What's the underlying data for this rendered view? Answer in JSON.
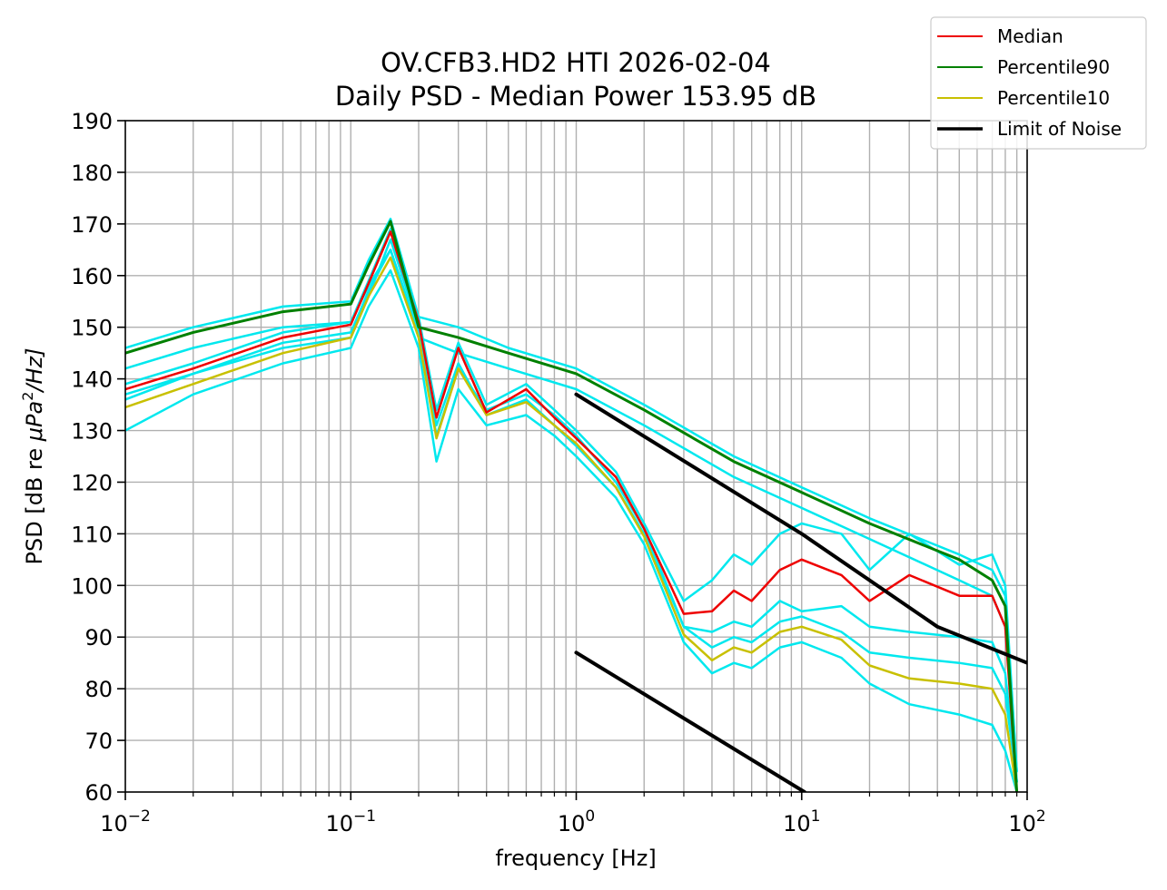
{
  "chart_data": {
    "type": "line",
    "title": [
      "OV.CFB3.HD2 HTI 2026-02-04",
      "Daily PSD - Median Power 153.95 dB"
    ],
    "xlabel": "frequency [Hz]",
    "ylabel_prefix": "PSD [dB re ",
    "ylabel_unit": "μPa",
    "ylabel_exp": "2",
    "ylabel_suffix": "/Hz]",
    "xscale": "log",
    "xlim": [
      0.01,
      100
    ],
    "ylim": [
      60,
      190
    ],
    "grid": true,
    "legend_position": "outside-top-right",
    "x_ticks": [
      {
        "value": 0.01,
        "base": "10",
        "exp": "−2"
      },
      {
        "value": 0.1,
        "base": "10",
        "exp": "−1"
      },
      {
        "value": 1,
        "base": "10",
        "exp": "0"
      },
      {
        "value": 10,
        "base": "10",
        "exp": "1"
      },
      {
        "value": 100,
        "base": "10",
        "exp": "2"
      }
    ],
    "y_ticks": [
      60,
      70,
      80,
      90,
      100,
      110,
      120,
      130,
      140,
      150,
      160,
      170,
      180,
      190
    ],
    "legend": [
      {
        "label": "Median",
        "color": "#ee0000",
        "width": 2
      },
      {
        "label": "Percentile90",
        "color": "#008000",
        "width": 2
      },
      {
        "label": "Percentile10",
        "color": "#c8c000",
        "width": 2
      },
      {
        "label": "Limit of Noise",
        "color": "#000000",
        "width": 3.5
      }
    ],
    "series": [
      {
        "name": "Median lower envelope",
        "color": "#00e8ee",
        "width": 2.5,
        "x": [
          0.01,
          0.02,
          0.05,
          0.1,
          0.12,
          0.15,
          0.2,
          0.24,
          0.3,
          0.4,
          0.6,
          0.8,
          1,
          1.5,
          2,
          3,
          4,
          5,
          6,
          8,
          10,
          15,
          20,
          30,
          50,
          70,
          80,
          90
        ],
        "y": [
          137,
          141,
          146,
          148,
          156,
          167,
          150,
          131,
          143,
          133,
          136,
          131,
          127,
          119,
          110,
          92,
          91,
          93,
          92,
          97,
          95,
          96,
          92,
          91,
          90,
          89,
          83,
          62
        ]
      },
      {
        "name": "Median upper envelope",
        "color": "#00e8ee",
        "width": 2.5,
        "x": [
          0.01,
          0.02,
          0.05,
          0.1,
          0.12,
          0.15,
          0.2,
          0.24,
          0.3,
          0.4,
          0.6,
          0.8,
          1,
          1.5,
          2,
          3,
          4,
          5,
          6,
          8,
          10,
          15,
          20,
          30,
          50,
          70,
          80,
          90
        ],
        "y": [
          139,
          143,
          149,
          151,
          159,
          169,
          152,
          134,
          147,
          135,
          139,
          134,
          130,
          122,
          112,
          97,
          101,
          106,
          104,
          110,
          112,
          110,
          103,
          110,
          104,
          106,
          100,
          64
        ]
      },
      {
        "name": "Percentile10 lower envelope",
        "color": "#00e8ee",
        "width": 2.5,
        "x": [
          0.01,
          0.02,
          0.05,
          0.1,
          0.12,
          0.15,
          0.2,
          0.24,
          0.3,
          0.4,
          0.6,
          0.8,
          1,
          1.5,
          2,
          3,
          4,
          5,
          6,
          8,
          10,
          15,
          20,
          30,
          50,
          70,
          80,
          90
        ],
        "y": [
          130,
          137,
          143,
          146,
          154,
          161,
          146,
          124,
          138,
          131,
          133,
          129,
          125,
          117,
          108,
          89,
          83,
          85,
          84,
          88,
          89,
          86,
          81,
          77,
          75,
          73,
          68,
          60
        ]
      },
      {
        "name": "Percentile10 upper envelope",
        "color": "#00e8ee",
        "width": 2.5,
        "x": [
          0.01,
          0.02,
          0.05,
          0.1,
          0.12,
          0.15,
          0.2,
          0.24,
          0.3,
          0.4,
          0.6,
          0.8,
          1,
          1.5,
          2,
          3,
          4,
          5,
          6,
          8,
          10,
          15,
          20,
          30,
          50,
          70,
          80,
          90
        ],
        "y": [
          136,
          141,
          147,
          149,
          157,
          165,
          149,
          129,
          142,
          134,
          137,
          133,
          129,
          120,
          111,
          92,
          88,
          90,
          89,
          93,
          94,
          91,
          87,
          86,
          85,
          84,
          79,
          62
        ]
      },
      {
        "name": "Percentile90 lower envelope",
        "color": "#00e8ee",
        "width": 2.5,
        "x": [
          0.01,
          0.02,
          0.05,
          0.1,
          0.12,
          0.15,
          0.2,
          0.3,
          0.5,
          1,
          2,
          5,
          10,
          20,
          50,
          70,
          80,
          90
        ],
        "y": [
          142,
          146,
          150,
          151,
          158,
          165,
          148,
          145,
          142,
          138,
          131,
          121,
          115,
          109,
          101,
          98,
          92,
          62
        ]
      },
      {
        "name": "Percentile90 upper envelope",
        "color": "#00e8ee",
        "width": 2.5,
        "x": [
          0.01,
          0.02,
          0.05,
          0.1,
          0.12,
          0.15,
          0.2,
          0.3,
          0.5,
          1,
          2,
          5,
          10,
          20,
          50,
          70,
          80,
          90
        ],
        "y": [
          146,
          150,
          154,
          155,
          163,
          171,
          152,
          150,
          146,
          142,
          135,
          125,
          119,
          113,
          106,
          103,
          98,
          64
        ]
      },
      {
        "name": "Percentile10",
        "color": "#c8c000",
        "width": 2.5,
        "x": [
          0.01,
          0.02,
          0.05,
          0.1,
          0.12,
          0.15,
          0.2,
          0.24,
          0.3,
          0.4,
          0.6,
          0.8,
          1,
          1.5,
          2,
          3,
          4,
          5,
          6,
          8,
          10,
          15,
          20,
          30,
          50,
          70,
          80,
          90
        ],
        "y": [
          134.5,
          139,
          145,
          148,
          156,
          163.5,
          148,
          128.5,
          142,
          133,
          135.5,
          131,
          127.5,
          119,
          109.5,
          90.5,
          85.5,
          88,
          87,
          91,
          92,
          89.5,
          84.5,
          82,
          81,
          80,
          75,
          60
        ]
      },
      {
        "name": "Median",
        "color": "#ee0000",
        "width": 2.5,
        "x": [
          0.01,
          0.02,
          0.05,
          0.1,
          0.12,
          0.15,
          0.2,
          0.24,
          0.3,
          0.4,
          0.6,
          0.8,
          1,
          1.5,
          2,
          3,
          4,
          5,
          6,
          8,
          10,
          15,
          20,
          30,
          50,
          70,
          80,
          90
        ],
        "y": [
          138,
          142,
          148,
          150.5,
          158.5,
          168.5,
          151,
          132.5,
          146,
          133.5,
          138,
          132.5,
          128.5,
          121,
          111,
          94.5,
          95,
          99,
          97,
          103,
          105,
          102,
          97,
          102,
          98,
          98,
          92,
          60
        ]
      },
      {
        "name": "Percentile90",
        "color": "#008000",
        "width": 3,
        "x": [
          0.01,
          0.02,
          0.05,
          0.1,
          0.12,
          0.15,
          0.2,
          0.3,
          0.5,
          1,
          2,
          5,
          10,
          20,
          50,
          70,
          80,
          90
        ],
        "y": [
          145,
          149,
          153,
          154.5,
          162,
          170.5,
          150,
          148,
          145,
          141,
          134,
          124,
          118,
          112,
          105,
          101,
          96,
          60
        ]
      },
      {
        "name": "Limit of Noise (upper)",
        "color": "#000000",
        "width": 4,
        "x": [
          1,
          10,
          40,
          100
        ],
        "y": [
          137,
          110,
          92,
          85
        ]
      },
      {
        "name": "Limit of Noise (lower)",
        "color": "#000000",
        "width": 4,
        "x": [
          1,
          10.3
        ],
        "y": [
          87,
          60
        ]
      }
    ]
  }
}
